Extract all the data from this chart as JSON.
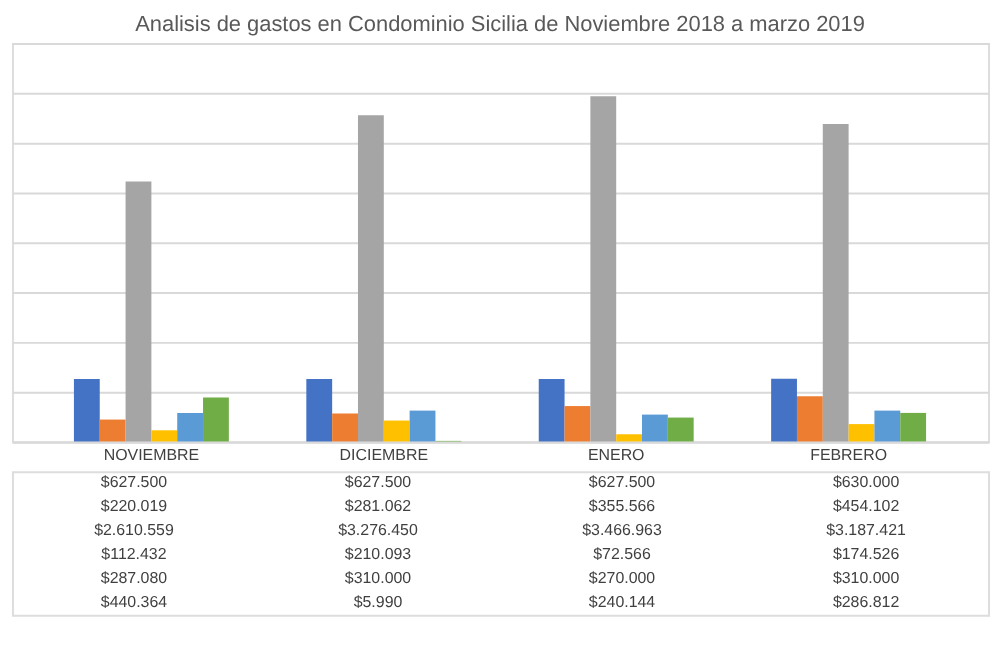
{
  "chart_data": {
    "type": "bar",
    "title": "Analisis de gastos en Condominio Sicilia de Noviembre 2018 a marzo 2019",
    "categories": [
      "NOVIEMBRE",
      "DICIEMBRE",
      "ENERO",
      "FEBRERO"
    ],
    "series": [
      {
        "color": "#4472c4",
        "values": [
          627500,
          627500,
          627500,
          630000
        ],
        "value_labels": [
          "$627.500",
          "$627.500",
          "$627.500",
          "$630.000"
        ]
      },
      {
        "color": "#ed7d31",
        "values": [
          220019,
          281062,
          355566,
          454102
        ],
        "value_labels": [
          "$220.019",
          "$281.062",
          "$355.566",
          "$454.102"
        ]
      },
      {
        "color": "#a5a5a5",
        "values": [
          2610559,
          3276450,
          3466963,
          3187421
        ],
        "value_labels": [
          "$2.610.559",
          "$3.276.450",
          "$3.466.963",
          "$3.187.421"
        ]
      },
      {
        "color": "#ffc000",
        "values": [
          112432,
          210093,
          72566,
          174526
        ],
        "value_labels": [
          "$112.432",
          "$210.093",
          "$72.566",
          "$174.526"
        ]
      },
      {
        "color": "#5b9bd5",
        "values": [
          287080,
          310000,
          270000,
          310000
        ],
        "value_labels": [
          "$287.080",
          "$310.000",
          "$270.000",
          "$310.000"
        ]
      },
      {
        "color": "#70ad47",
        "values": [
          440364,
          5990,
          240144,
          286812
        ],
        "value_labels": [
          "$440.364",
          "$5.990",
          "$240.144",
          "$286.812"
        ]
      }
    ],
    "ylim": [
      0,
      4000000
    ],
    "yticks": [
      {
        "value": 0,
        "label": null
      },
      {
        "value": 500000,
        "label": null
      },
      {
        "value": 1000000,
        "label": null
      },
      {
        "value": 1500000,
        "label": null
      },
      {
        "value": 2000000,
        "label": null
      },
      {
        "value": 2500000,
        "label": null
      },
      {
        "value": 3000000,
        "label": null
      },
      {
        "value": 3500000,
        "label": null
      },
      {
        "value": 4000000,
        "label": null
      }
    ],
    "grid": "y",
    "legend": false,
    "tick_labels": "x"
  }
}
